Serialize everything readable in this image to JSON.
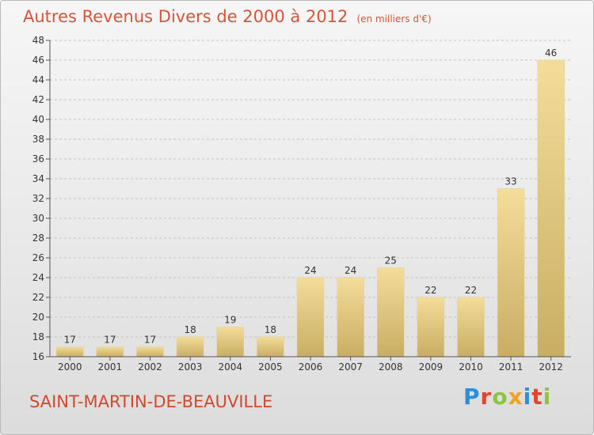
{
  "title": {
    "main": "Autres Revenus Divers de 2000 à 2012",
    "unit": "(en milliers d'€)"
  },
  "location": "SAINT-MARTIN-DE-BEAUVILLE",
  "brand": {
    "text": "Proxiti",
    "letters": [
      {
        "ch": "P",
        "color": "#2f8fd6"
      },
      {
        "ch": "r",
        "color": "#e8422b"
      },
      {
        "ch": "o",
        "color": "#8cc43c"
      },
      {
        "ch": "x",
        "color": "#f3a21b"
      },
      {
        "ch": "i",
        "color": "#2f8fd6"
      },
      {
        "ch": "t",
        "color": "#e8422b"
      },
      {
        "ch": "i",
        "color": "#8cc43c"
      }
    ]
  },
  "colors": {
    "title": "#d75437",
    "bar_light": "#f3dd9a",
    "bar_dark": "#c9ad63",
    "grid": "#c4c4c4",
    "axis": "#555555"
  },
  "chart_data": {
    "type": "bar",
    "categories": [
      "2000",
      "2001",
      "2002",
      "2003",
      "2004",
      "2005",
      "2006",
      "2007",
      "2008",
      "2009",
      "2010",
      "2011",
      "2012"
    ],
    "values": [
      17,
      17,
      17,
      18,
      19,
      18,
      24,
      24,
      25,
      22,
      22,
      33,
      46
    ],
    "ylim": [
      16,
      48
    ],
    "yticks": [
      "16",
      "18",
      "20",
      "22",
      "24",
      "26",
      "28",
      "30",
      "32",
      "34",
      "36",
      "38",
      "40",
      "42",
      "44",
      "46",
      "48"
    ],
    "ytick_step": 2,
    "grid": "horizontal dashed",
    "title": "Autres Revenus Divers de 2000 à 2012",
    "xlabel": "",
    "ylabel": ""
  }
}
